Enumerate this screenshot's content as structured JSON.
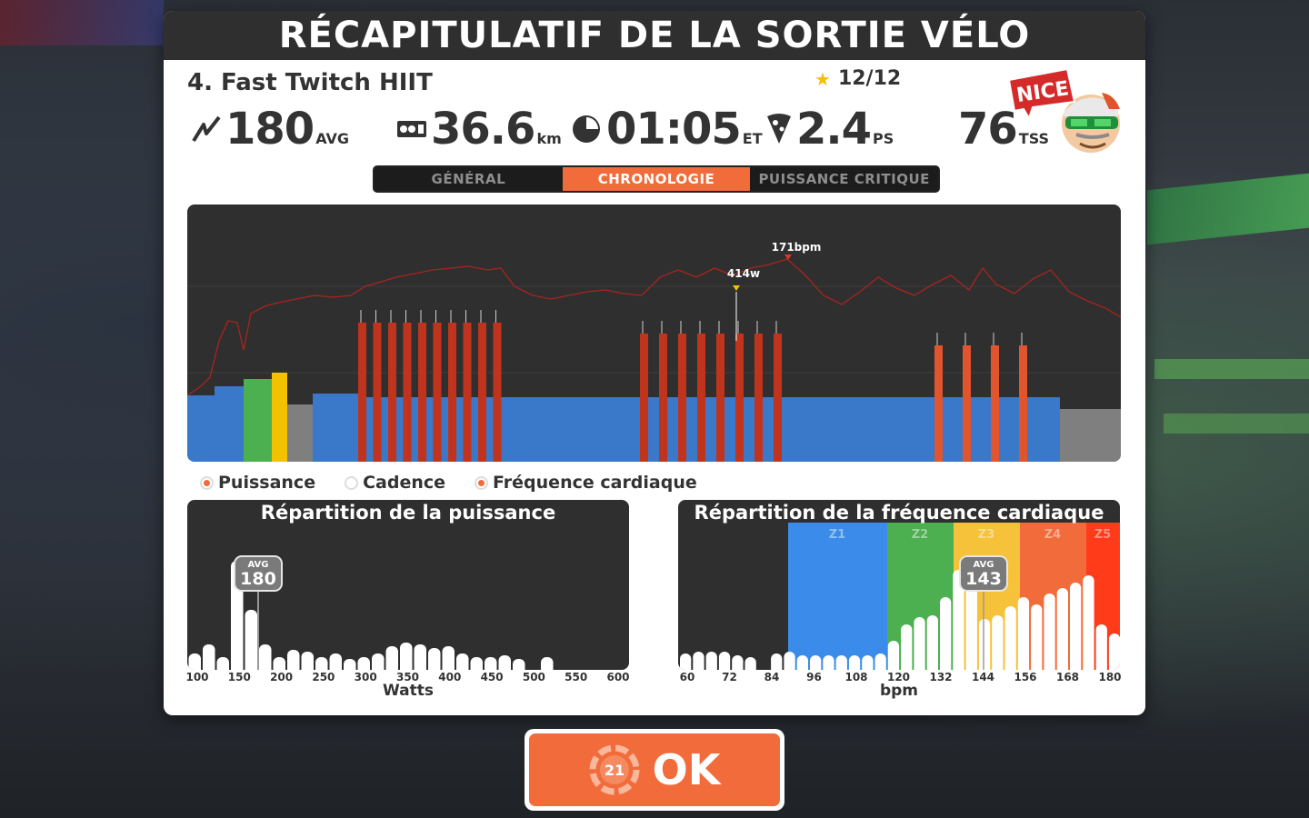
{
  "header": {
    "title": "RÉCAPITULATIF DE LA SORTIE VÉLO"
  },
  "workout": {
    "title": "4. Fast Twitch HIIT",
    "stars": "12/12"
  },
  "stats": [
    {
      "icon": "power-icon",
      "value": "180",
      "unit": "AVG"
    },
    {
      "icon": "odometer-icon",
      "value": "36.6",
      "unit": "km"
    },
    {
      "icon": "clock-icon",
      "value": "01:05",
      "unit": "ET"
    },
    {
      "icon": "pizza-icon",
      "value": "2.4",
      "unit": "PS"
    },
    {
      "icon": "stress-icon",
      "value": "76",
      "unit": "TSS"
    }
  ],
  "mascot": {
    "badge": "NICE!"
  },
  "tabs": [
    {
      "label": "GÉNÉRAL",
      "active": false
    },
    {
      "label": "CHRONOLOGIE",
      "active": true
    },
    {
      "label": "PUISSANCE CRITIQUE",
      "active": false
    }
  ],
  "timeline": {
    "peak_power_label": "414w",
    "peak_hr_label": "171bpm",
    "zone_colors": {
      "z1": "#7f7f7f",
      "z2": "#3a78c9",
      "z3": "#4caf50",
      "z4": "#f2c200",
      "z5": "#e0542e",
      "z6": "#c0341e",
      "hr": "#a8241e"
    }
  },
  "legend": [
    {
      "label": "Puissance",
      "on": true
    },
    {
      "label": "Cadence",
      "on": false
    },
    {
      "label": "Fréquence cardiaque",
      "on": true
    }
  ],
  "power_dist": {
    "title": "Répartition de la puissance",
    "avg_label": "AVG",
    "avg_value": "180",
    "ticks": [
      "100",
      "150",
      "200",
      "250",
      "300",
      "350",
      "400",
      "450",
      "500",
      "550",
      "600"
    ],
    "axis_title": "Watts"
  },
  "hr_dist": {
    "title": "Répartition de la fréquence cardiaque",
    "avg_label": "AVG",
    "avg_value": "143",
    "zones": [
      "Z1",
      "Z2",
      "Z3",
      "Z4",
      "Z5"
    ],
    "ticks": [
      "60",
      "72",
      "84",
      "96",
      "108",
      "120",
      "132",
      "144",
      "156",
      "168",
      "180"
    ],
    "axis_title": "bpm"
  },
  "ok_button": {
    "label": "OK",
    "badge": "21"
  }
}
